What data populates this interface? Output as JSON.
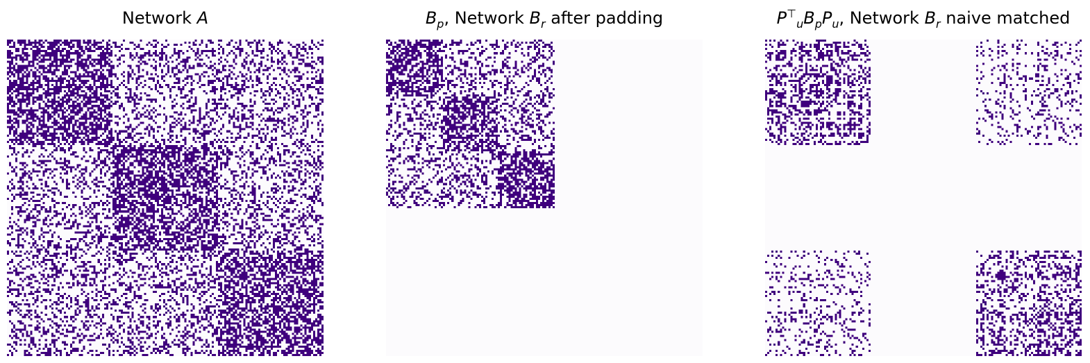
{
  "colors": {
    "edge": "#3f007d",
    "background": "#fcfbfd"
  },
  "panels": [
    {
      "title_parts": [
        {
          "text": "Network ",
          "style": "plain"
        },
        {
          "text": "A",
          "style": "math"
        }
      ]
    },
    {
      "title_parts": [
        {
          "text": "B",
          "style": "math"
        },
        {
          "text": "p",
          "style": "sub"
        },
        {
          "text": ", Network ",
          "style": "plain"
        },
        {
          "text": "B",
          "style": "math"
        },
        {
          "text": "r",
          "style": "sub"
        },
        {
          "text": " after padding",
          "style": "plain"
        }
      ]
    },
    {
      "title_parts": [
        {
          "text": "P",
          "style": "math"
        },
        {
          "text": "⊤",
          "style": "sup"
        },
        {
          "text": "u",
          "style": "sub"
        },
        {
          "text": "B",
          "style": "math"
        },
        {
          "text": "p",
          "style": "sub"
        },
        {
          "text": "P",
          "style": "math"
        },
        {
          "text": "u",
          "style": "sub"
        },
        {
          "text": ", Network ",
          "style": "plain"
        },
        {
          "text": "B",
          "style": "math"
        },
        {
          "text": "r",
          "style": "sub"
        },
        {
          "text": " naive matched",
          "style": "plain"
        }
      ]
    }
  ],
  "heatmaps": {
    "network_a": {
      "n_nodes": 150,
      "blocks": [
        50,
        50,
        50
      ],
      "p_within": 0.6,
      "p_between": 0.3
    },
    "network_b_padded": {
      "n_nodes": 150,
      "n_real_nodes": 80,
      "blocks": [
        27,
        26,
        27
      ],
      "p_within": 0.6,
      "p_between": 0.3
    },
    "network_b_naive_matched": {
      "n_nodes": 150,
      "real_node_groups": [
        [
          0,
          50
        ],
        [
          100,
          150
        ]
      ],
      "p_within": 0.6,
      "p_between": 0.3
    }
  }
}
